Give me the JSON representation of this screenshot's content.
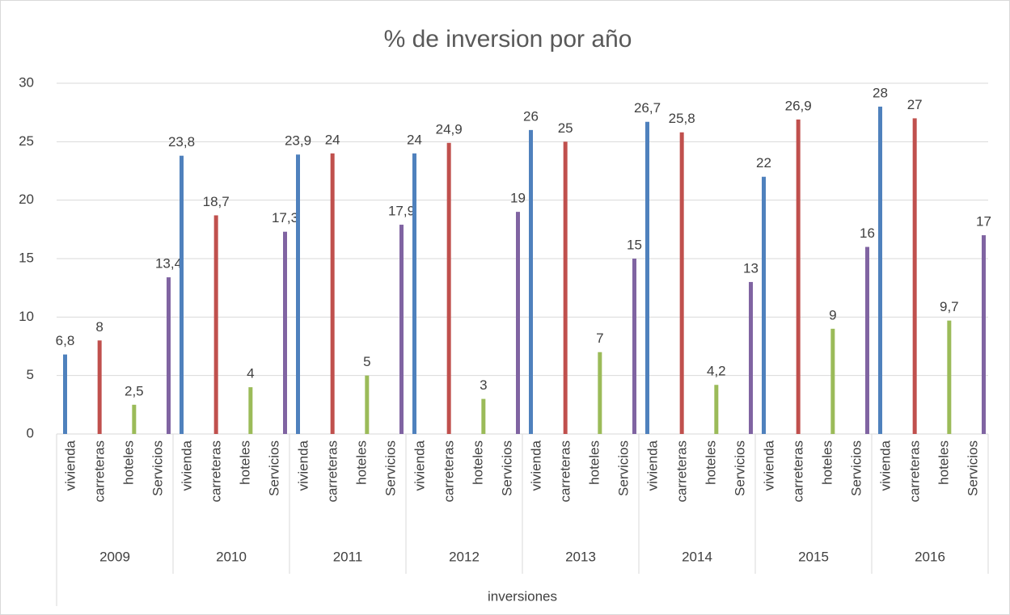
{
  "chart_data": {
    "type": "bar",
    "title": "% de inversion por año",
    "x_label": "inversiones",
    "categories": [
      "2009",
      "2010",
      "2011",
      "2012",
      "2013",
      "2014",
      "2015",
      "2016"
    ],
    "series": [
      {
        "name": "vivienda",
        "color": "#4f81bd",
        "values": [
          6.8,
          23.8,
          23.9,
          24,
          26,
          26.7,
          22,
          28
        ],
        "value_labels": [
          "6,8",
          "23,8",
          "23,9",
          "24",
          "26",
          "26,7",
          "22",
          "28"
        ]
      },
      {
        "name": "carreteras",
        "color": "#c0504d",
        "values": [
          8,
          18.7,
          24,
          24.9,
          25,
          25.8,
          26.9,
          27
        ],
        "value_labels": [
          "8",
          "18,7",
          "24",
          "24,9",
          "25",
          "25,8",
          "26,9",
          "27"
        ]
      },
      {
        "name": "hoteles",
        "color": "#9bbb59",
        "values": [
          2.5,
          4,
          5,
          3,
          7,
          4.2,
          9,
          9.7
        ],
        "value_labels": [
          "2,5",
          "4",
          "5",
          "3",
          "7",
          "4,2",
          "9",
          "9,7"
        ]
      },
      {
        "name": "Servicios",
        "color": "#8064a2",
        "values": [
          13.4,
          17.3,
          17.9,
          19,
          15,
          13,
          16,
          17
        ],
        "value_labels": [
          "13,4",
          "17,3",
          "17,9",
          "19",
          "15",
          "13",
          "16",
          "17"
        ]
      }
    ],
    "ylim": [
      0,
      30
    ],
    "yticks": [
      0,
      5,
      10,
      15,
      20,
      25,
      30
    ],
    "grid": true
  }
}
